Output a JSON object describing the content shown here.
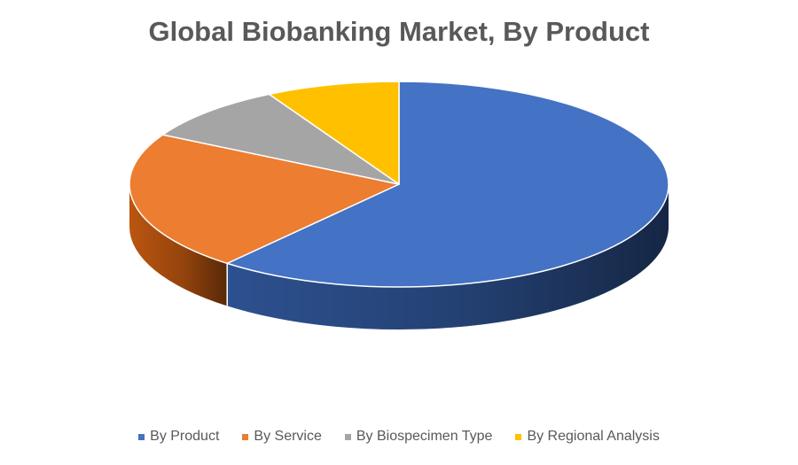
{
  "chart_data": {
    "type": "pie",
    "style": "3d",
    "title": "Global Biobanking Market, By Product",
    "categories": [
      "By Product",
      "By Service",
      "By Biospecimen Type",
      "By Regional Analysis"
    ],
    "values": [
      61,
      22,
      9,
      8
    ],
    "colors": [
      "#4472C4",
      "#ED7D31",
      "#A5A5A5",
      "#FFC000"
    ],
    "side_colors": [
      "#2F5597",
      "#C55A11",
      "#7F7F7F",
      "#BF9000"
    ],
    "legend_position": "bottom"
  }
}
